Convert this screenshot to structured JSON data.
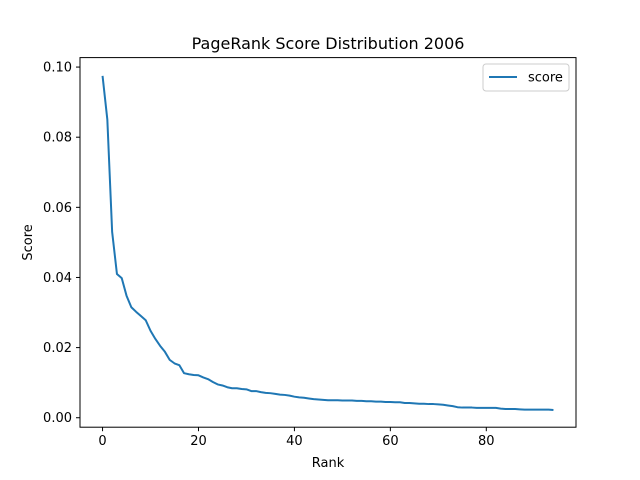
{
  "chart_data": {
    "type": "line",
    "title": "PageRank Score Distribution 2006",
    "xlabel": "Rank",
    "ylabel": "Score",
    "xlim": [
      -4.7,
      98.7
    ],
    "ylim": [
      -0.0027,
      0.1027
    ],
    "xticks": [
      0,
      20,
      40,
      60,
      80
    ],
    "xtick_labels": [
      "0",
      "20",
      "40",
      "60",
      "80"
    ],
    "yticks": [
      0.0,
      0.02,
      0.04,
      0.06,
      0.08,
      0.1
    ],
    "ytick_labels": [
      "0.00",
      "0.02",
      "0.04",
      "0.06",
      "0.08",
      "0.10"
    ],
    "grid": false,
    "legend": "top-right",
    "series": [
      {
        "name": "score",
        "color": "#1f77b4",
        "x": [
          0,
          1,
          2,
          3,
          4,
          5,
          6,
          7,
          8,
          9,
          10,
          11,
          12,
          13,
          14,
          15,
          16,
          17,
          18,
          19,
          20,
          21,
          22,
          23,
          24,
          25,
          26,
          27,
          28,
          29,
          30,
          31,
          32,
          33,
          34,
          35,
          36,
          37,
          38,
          39,
          40,
          41,
          42,
          43,
          44,
          45,
          46,
          47,
          48,
          49,
          50,
          51,
          52,
          53,
          54,
          55,
          56,
          57,
          58,
          59,
          60,
          61,
          62,
          63,
          64,
          65,
          66,
          67,
          68,
          69,
          70,
          71,
          72,
          73,
          74,
          75,
          76,
          77,
          78,
          79,
          80,
          81,
          82,
          83,
          84,
          85,
          86,
          87,
          88,
          89,
          90,
          91,
          92,
          93,
          94
        ],
        "values": [
          0.0975,
          0.085,
          0.053,
          0.041,
          0.0398,
          0.0348,
          0.0315,
          0.0302,
          0.029,
          0.0278,
          0.0248,
          0.0225,
          0.0205,
          0.0188,
          0.0165,
          0.0155,
          0.015,
          0.0127,
          0.0124,
          0.0122,
          0.0121,
          0.0115,
          0.011,
          0.0102,
          0.0095,
          0.0092,
          0.0087,
          0.0084,
          0.0084,
          0.0082,
          0.0081,
          0.0076,
          0.0076,
          0.0073,
          0.0071,
          0.007,
          0.0068,
          0.0066,
          0.0065,
          0.0063,
          0.006,
          0.0058,
          0.0057,
          0.0055,
          0.0053,
          0.0052,
          0.0051,
          0.005,
          0.005,
          0.005,
          0.0049,
          0.0049,
          0.0049,
          0.0048,
          0.0048,
          0.0047,
          0.0047,
          0.0046,
          0.0046,
          0.0045,
          0.0045,
          0.0044,
          0.0044,
          0.0042,
          0.0042,
          0.0041,
          0.004,
          0.004,
          0.0039,
          0.0039,
          0.0038,
          0.0037,
          0.0035,
          0.0033,
          0.003,
          0.0029,
          0.0029,
          0.0029,
          0.0028,
          0.0028,
          0.0028,
          0.0028,
          0.0028,
          0.0026,
          0.0025,
          0.0025,
          0.0025,
          0.0024,
          0.0023,
          0.0023,
          0.0023,
          0.0023,
          0.0023,
          0.0023,
          0.0022
        ]
      }
    ]
  }
}
